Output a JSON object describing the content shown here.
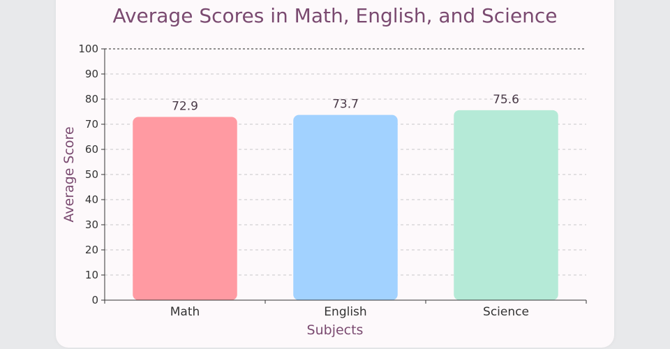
{
  "chart_data": {
    "type": "bar",
    "title": "Average Scores in Math, English, and Science",
    "xlabel": "Subjects",
    "ylabel": "Average Score",
    "categories": [
      "Math",
      "English",
      "Science"
    ],
    "values": [
      72.9,
      73.7,
      75.6
    ],
    "value_labels": [
      "72.9",
      "73.7",
      "75.6"
    ],
    "colors": [
      "#ff9aa2",
      "#a2d2ff",
      "#b5ead7"
    ],
    "ylim": [
      0,
      100
    ],
    "yticks": [
      0,
      10,
      20,
      30,
      40,
      50,
      60,
      70,
      80,
      90,
      100
    ],
    "grid": true,
    "legend": "none"
  }
}
